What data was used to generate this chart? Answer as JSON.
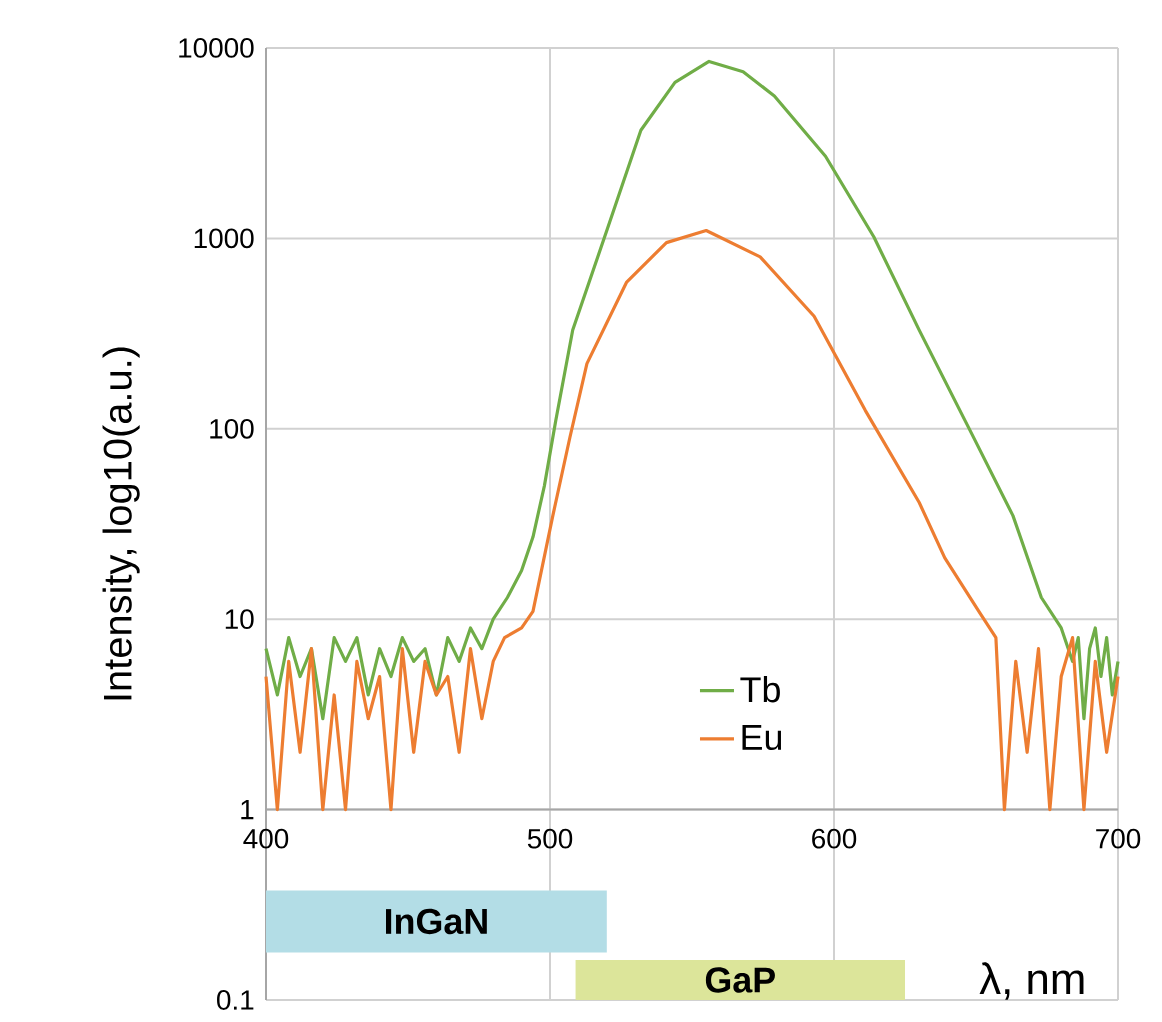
{
  "chart_data": {
    "type": "line",
    "xlabel": "λ, nm",
    "ylabel": "Intensity, log10(a.u.)",
    "xlim": [
      400,
      700
    ],
    "xticks": [
      400,
      500,
      600,
      700
    ],
    "ylim": [
      0.1,
      10000
    ],
    "yticks": [
      0.1,
      1,
      10,
      100,
      1000,
      10000
    ],
    "log": "y",
    "grid": true,
    "legend": "center",
    "series": [
      {
        "name": "Tb",
        "color": "#70ad47",
        "x": [
          400,
          404,
          408,
          412,
          416,
          420,
          424,
          428,
          432,
          436,
          440,
          444,
          448,
          452,
          456,
          460,
          464,
          468,
          472,
          476,
          480,
          485,
          490,
          494,
          498,
          502,
          508,
          520,
          532,
          544,
          556,
          568,
          579,
          597,
          614,
          630,
          649,
          663,
          673,
          680,
          684,
          686,
          688,
          690,
          692,
          694,
          696,
          698,
          700
        ],
        "values": [
          7,
          4,
          8,
          5,
          7,
          3,
          8,
          6,
          8,
          4,
          7,
          5,
          8,
          6,
          7,
          4,
          8,
          6,
          9,
          7,
          10,
          13,
          18,
          27,
          50,
          110,
          330,
          1100,
          3700,
          6600,
          8500,
          7500,
          5600,
          2700,
          1020,
          330,
          91,
          35,
          13,
          9,
          6,
          8,
          3,
          7,
          9,
          5,
          8,
          4,
          6
        ]
      },
      {
        "name": "Eu",
        "color": "#ed7d31",
        "x": [
          400,
          404,
          408,
          412,
          416,
          420,
          424,
          428,
          432,
          436,
          440,
          444,
          448,
          452,
          456,
          460,
          464,
          468,
          472,
          476,
          480,
          484,
          490,
          494,
          501,
          507,
          513,
          527,
          541,
          555,
          574,
          593,
          611,
          630,
          639,
          651,
          657,
          660,
          664,
          668,
          672,
          676,
          680,
          684,
          688,
          692,
          696,
          700
        ],
        "values": [
          5,
          1,
          6,
          2,
          7,
          1,
          4,
          1,
          6,
          3,
          5,
          1,
          7,
          2,
          6,
          4,
          5,
          2,
          7,
          3,
          6,
          8,
          9,
          11,
          35,
          90,
          220,
          590,
          950,
          1100,
          800,
          390,
          125,
          41,
          21,
          11,
          8,
          1,
          6,
          2,
          7,
          1,
          5,
          8,
          1,
          6,
          2,
          5
        ]
      }
    ],
    "bands": [
      {
        "axis": "x",
        "from": 400,
        "to": 520,
        "label": "InGaN",
        "color": "#b3dde6"
      },
      {
        "axis": "x",
        "from": 509,
        "to": 625,
        "label": "GaP",
        "color": "#dce59a"
      }
    ]
  }
}
